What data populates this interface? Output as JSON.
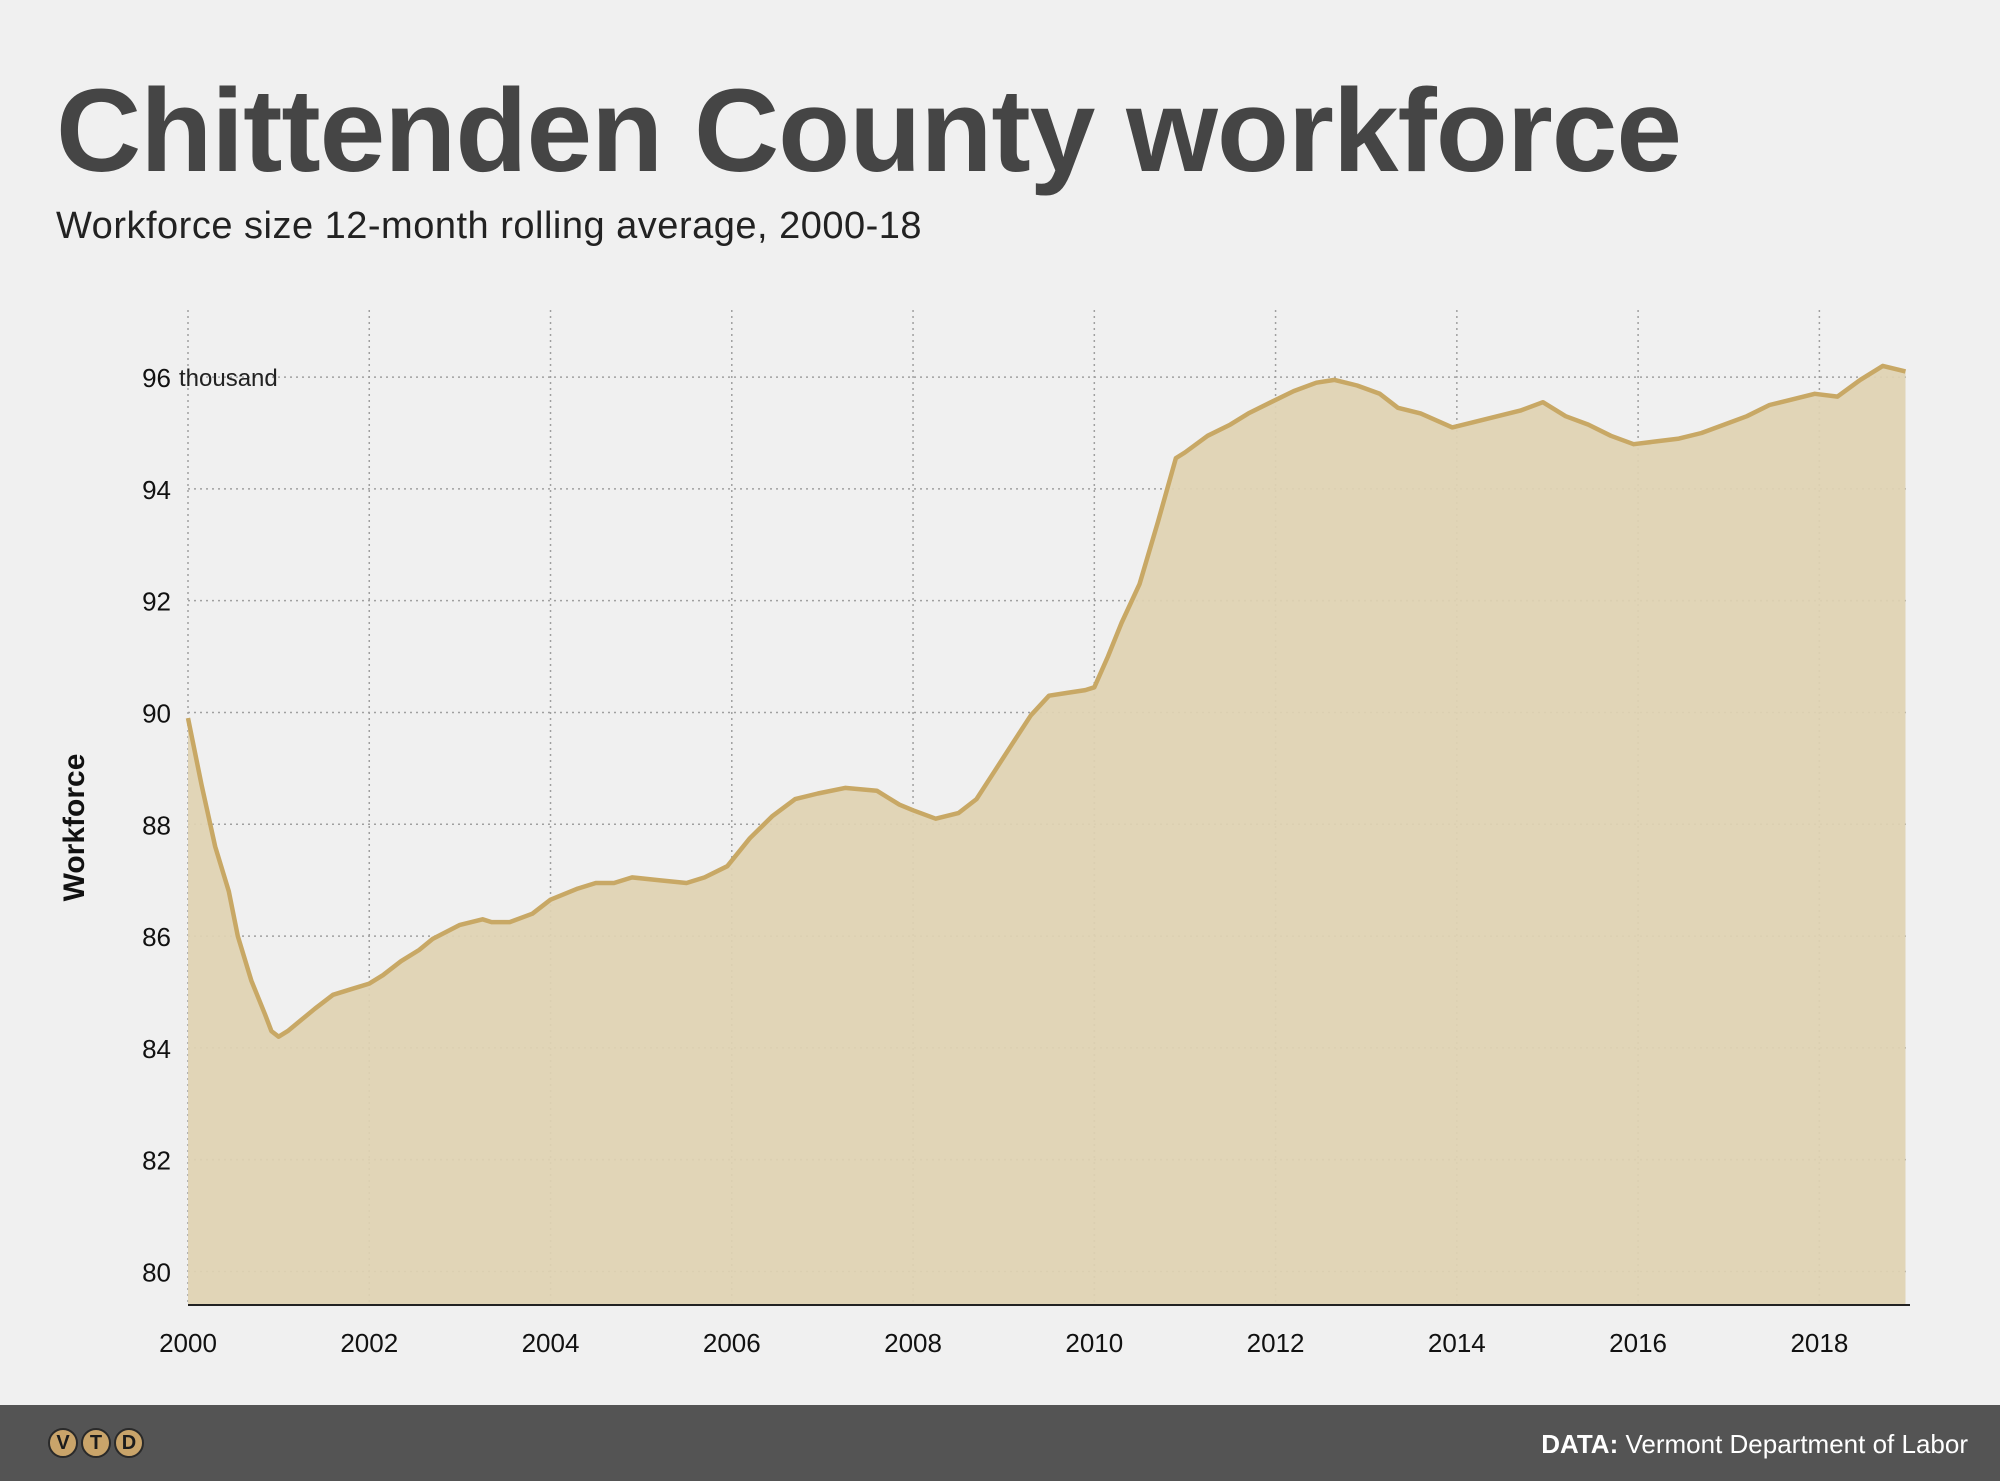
{
  "header": {
    "title": "Chittenden County workforce",
    "subtitle": "Workforce size 12-month rolling average, 2000-18"
  },
  "footer": {
    "logo_letters": [
      "V",
      "T",
      "D"
    ],
    "source_label": "DATA:",
    "source_text": "Vermont Department of Labor"
  },
  "colors": {
    "line": "#c8a865",
    "area": "#dfd2b2",
    "grid": "#a0a0a0",
    "background": "#f0f0f0",
    "footer": "#545454"
  },
  "chart_data": {
    "type": "area",
    "ylabel": "Workforce",
    "y_unit_label": "thousand",
    "xlim": [
      2000,
      2019
    ],
    "ylim": [
      79.4,
      97.2
    ],
    "x_ticks": [
      2000,
      2002,
      2004,
      2006,
      2008,
      2010,
      2012,
      2014,
      2016,
      2018
    ],
    "y_ticks": [
      80,
      82,
      84,
      86,
      88,
      90,
      92,
      94,
      96
    ],
    "grid": true,
    "series": [
      {
        "x": [
          2000.0,
          2000.15,
          2000.3,
          2000.45,
          2000.55,
          2000.7,
          2000.85,
          2000.92,
          2001.0,
          2001.1,
          2001.25,
          2001.4,
          2001.6,
          2001.8,
          2002.0,
          2002.15,
          2002.35,
          2002.55,
          2002.7,
          2003.0,
          2003.25,
          2003.35,
          2003.55,
          2003.8,
          2004.0,
          2004.3,
          2004.5,
          2004.7,
          2004.9,
          2005.2,
          2005.5,
          2005.7,
          2005.95,
          2006.2,
          2006.45,
          2006.7,
          2006.95,
          2007.25,
          2007.6,
          2007.85,
          2008.0,
          2008.25,
          2008.5,
          2008.7,
          2008.9,
          2009.1,
          2009.3,
          2009.5,
          2009.7,
          2009.9,
          2010.0,
          2010.15,
          2010.3,
          2010.5,
          2010.7,
          2010.9,
          2011.0,
          2011.25,
          2011.5,
          2011.7,
          2011.95,
          2012.2,
          2012.45,
          2012.65,
          2012.9,
          2013.15,
          2013.35,
          2013.6,
          2013.95,
          2014.2,
          2014.45,
          2014.7,
          2014.95,
          2015.2,
          2015.45,
          2015.7,
          2015.95,
          2016.2,
          2016.45,
          2016.7,
          2016.95,
          2017.2,
          2017.45,
          2017.7,
          2017.95,
          2018.2,
          2018.45,
          2018.7,
          2018.95
        ],
        "values": [
          89.9,
          88.7,
          87.6,
          86.8,
          86.0,
          85.2,
          84.6,
          84.3,
          84.2,
          84.3,
          84.5,
          84.7,
          84.95,
          85.05,
          85.15,
          85.3,
          85.55,
          85.75,
          85.95,
          86.2,
          86.3,
          86.25,
          86.25,
          86.4,
          86.65,
          86.85,
          86.95,
          86.95,
          87.05,
          87.0,
          86.95,
          87.05,
          87.25,
          87.75,
          88.15,
          88.45,
          88.55,
          88.65,
          88.6,
          88.35,
          88.25,
          88.1,
          88.2,
          88.45,
          88.95,
          89.45,
          89.95,
          90.3,
          90.35,
          90.4,
          90.45,
          91.0,
          91.6,
          92.3,
          93.4,
          94.55,
          94.65,
          94.95,
          95.15,
          95.35,
          95.55,
          95.75,
          95.9,
          95.95,
          95.85,
          95.7,
          95.45,
          95.35,
          95.1,
          95.2,
          95.3,
          95.4,
          95.55,
          95.3,
          95.15,
          94.95,
          94.8,
          94.85,
          94.9,
          95.0,
          95.15,
          95.3,
          95.5,
          95.6,
          95.7,
          95.65,
          95.95,
          96.2,
          96.1
        ]
      }
    ]
  }
}
